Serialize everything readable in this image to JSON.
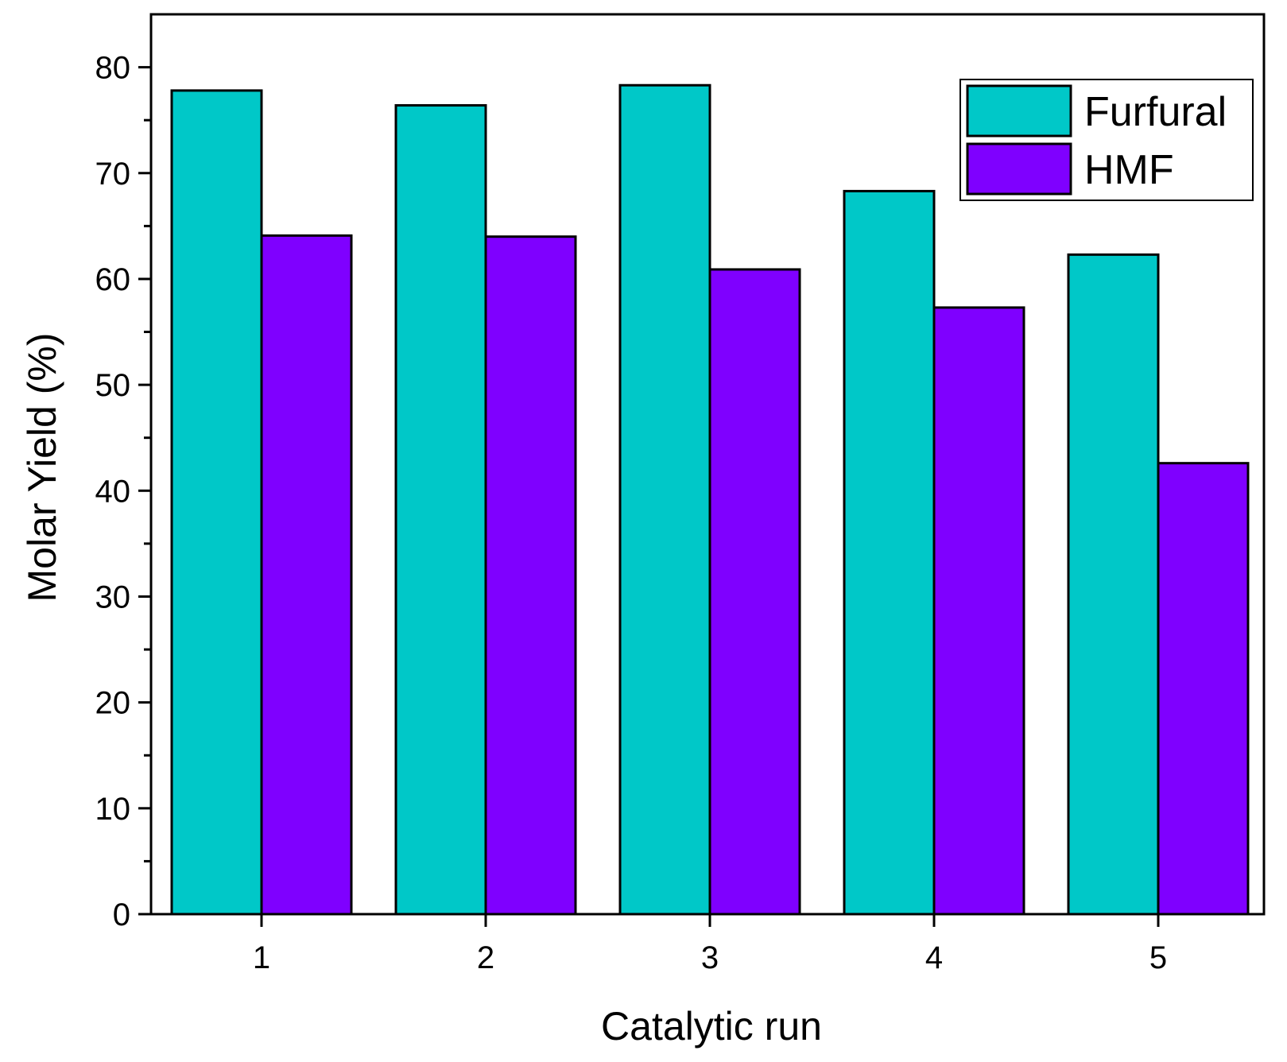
{
  "chart_data": {
    "type": "bar",
    "categories": [
      "1",
      "2",
      "3",
      "4",
      "5"
    ],
    "series": [
      {
        "name": "Furfural",
        "values": [
          77.8,
          76.4,
          78.3,
          68.3,
          62.3
        ],
        "color": "#00c8c8"
      },
      {
        "name": "HMF",
        "values": [
          64.1,
          64.0,
          60.9,
          57.3,
          42.6
        ],
        "color": "#7f00ff"
      }
    ],
    "xlabel": "Catalytic run",
    "ylabel": "Molar Yield (%)",
    "ylim": [
      0,
      85
    ],
    "yticks": [
      0,
      10,
      20,
      30,
      40,
      50,
      60,
      70,
      80
    ],
    "y_minor_step": 5,
    "grid": false,
    "legend_position": "top-right",
    "bar_outline_color": "#000000"
  }
}
